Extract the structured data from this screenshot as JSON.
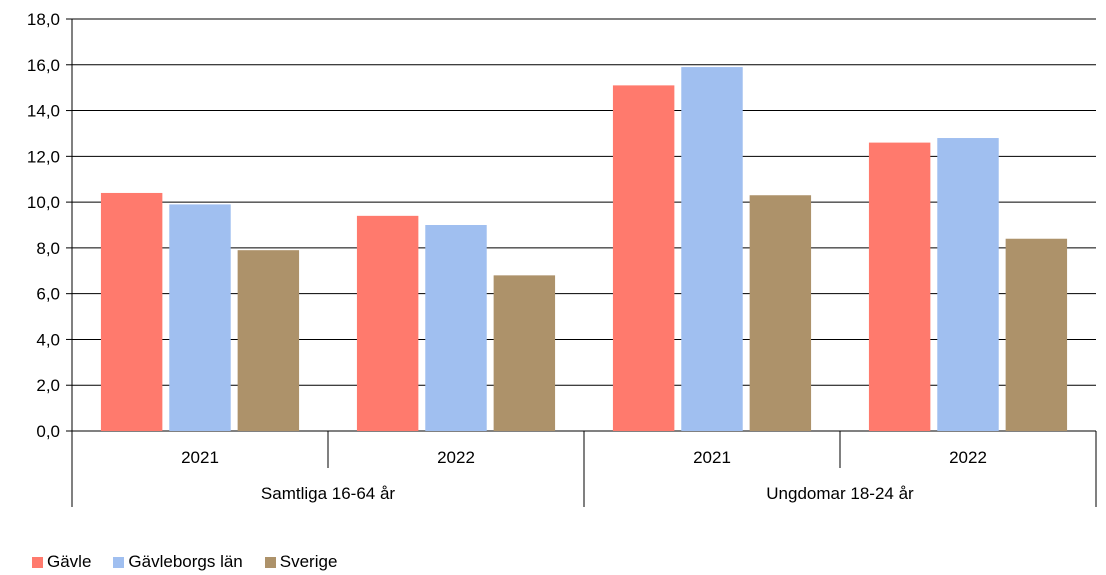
{
  "chart_data": {
    "type": "bar",
    "groups": [
      {
        "label": "Samtliga 16-64 år",
        "categories": [
          "2021",
          "2022"
        ]
      },
      {
        "label": "Ungdomar 18-24 år",
        "categories": [
          "2021",
          "2022"
        ]
      }
    ],
    "series": [
      {
        "name": "Gävle",
        "color": "#ff7a6d",
        "values": [
          10.4,
          9.4,
          15.1,
          12.6
        ]
      },
      {
        "name": "Gävleborgs län",
        "color": "#a0bff0",
        "values": [
          9.9,
          9.0,
          15.9,
          12.8
        ]
      },
      {
        "name": "Sverige",
        "color": "#ad926a",
        "values": [
          7.9,
          6.8,
          10.3,
          8.4
        ]
      }
    ],
    "y_ticks": [
      "0,0",
      "2,0",
      "4,0",
      "6,0",
      "8,0",
      "10,0",
      "12,0",
      "14,0",
      "16,0",
      "18,0"
    ],
    "ylim": [
      0,
      18
    ],
    "grid": true,
    "legend_position": "bottom-left"
  }
}
